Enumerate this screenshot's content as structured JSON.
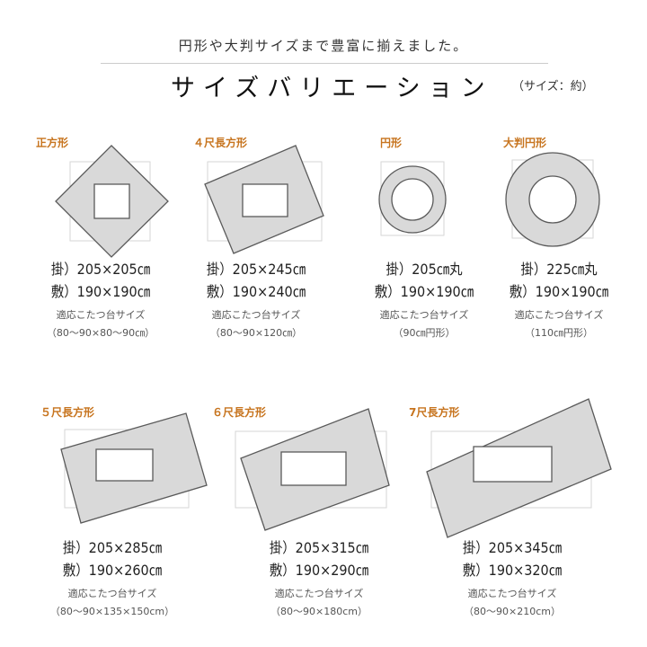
{
  "header": {
    "subtitle": "円形や大判サイズまで豊富に揃えました。",
    "title": "サイズバリエーション",
    "note": "（サイズ：約）"
  },
  "colors": {
    "label": "#c7741e",
    "shape_fill": "#d9d9d9",
    "shape_stroke": "#5a5a5a",
    "reference_outline": "#d6d6d6"
  },
  "items": [
    {
      "name": "正方形",
      "shape": "square",
      "kake": "掛）205×205㎝",
      "shiki": "敷）190×190㎝",
      "fit_label": "適応こたつ台サイズ",
      "fit_size": "（80～90×80～90㎝）"
    },
    {
      "name": "４尺長方形",
      "shape": "rectangle",
      "kake": "掛）205×245㎝",
      "shiki": "敷）190×240㎝",
      "fit_label": "適応こたつ台サイズ",
      "fit_size": "（80～90×120㎝）"
    },
    {
      "name": "円形",
      "shape": "circle",
      "kake": "掛）205㎝丸",
      "shiki": "敷）190×190㎝",
      "fit_label": "適応こたつ台サイズ",
      "fit_size": "（90㎝円形）"
    },
    {
      "name": "大判円形",
      "shape": "circle",
      "kake": "掛）225㎝丸",
      "shiki": "敷）190×190㎝",
      "fit_label": "適応こたつ台サイズ",
      "fit_size": "（110㎝円形）"
    },
    {
      "name": "５尺長方形",
      "shape": "rectangle",
      "kake": "掛）205×285㎝",
      "shiki": "敷）190×260㎝",
      "fit_label": "適応こたつ台サイズ",
      "fit_size": "（80～90×135×150cm）"
    },
    {
      "name": "６尺長方形",
      "shape": "rectangle",
      "kake": "掛）205×315㎝",
      "shiki": "敷）190×290㎝",
      "fit_label": "適応こたつ台サイズ",
      "fit_size": "（80～90×180cm）"
    },
    {
      "name": "7尺長方形",
      "shape": "rectangle",
      "kake": "掛）205×345㎝",
      "shiki": "敷）190×320㎝",
      "fit_label": "適応こたつ台サイズ",
      "fit_size": "（80～90×210cm）"
    }
  ]
}
